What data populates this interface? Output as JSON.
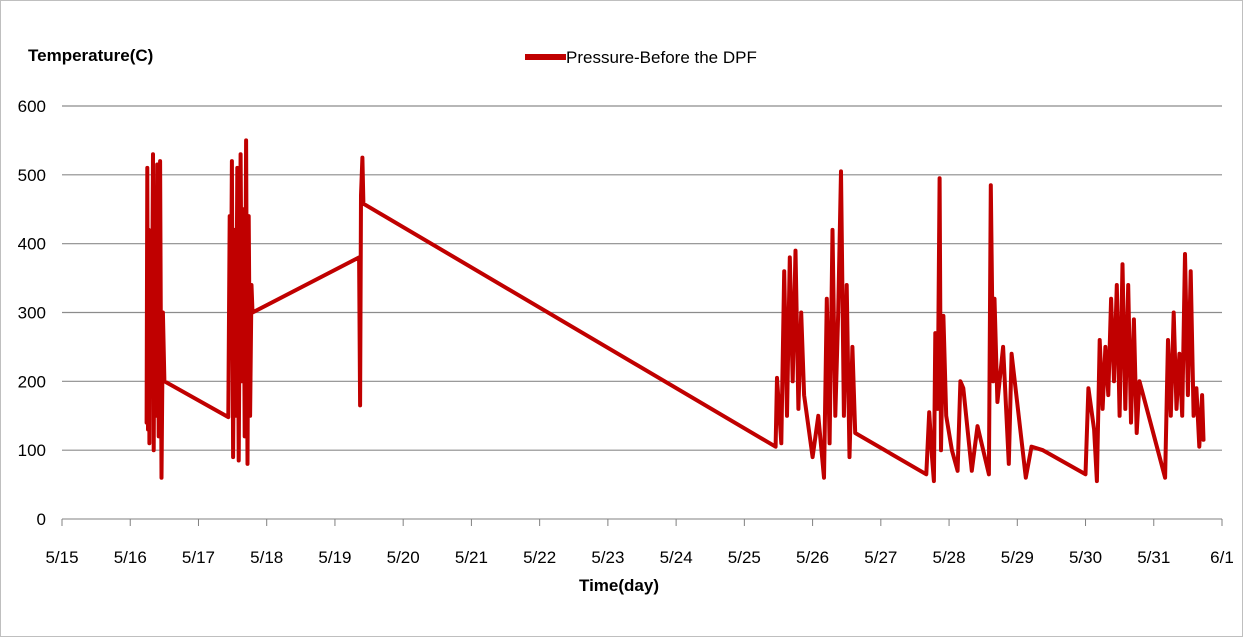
{
  "chart_data": {
    "type": "line",
    "title": "",
    "ylabel": "Temperature(C)",
    "xlabel": "Time(day)",
    "ylim": [
      0,
      600
    ],
    "yticks": [
      0,
      100,
      200,
      300,
      400,
      500,
      600
    ],
    "ytick_labels": [
      "0",
      "100",
      "200",
      "300",
      "400",
      "500",
      "600"
    ],
    "xlim": [
      "5/15",
      "6/1"
    ],
    "xtick_labels": [
      "5/15",
      "5/16",
      "5/17",
      "5/18",
      "5/19",
      "5/20",
      "5/21",
      "5/22",
      "5/23",
      "5/24",
      "5/25",
      "5/26",
      "5/27",
      "5/28",
      "5/29",
      "5/30",
      "5/31",
      "6/1"
    ],
    "grid": "horizontal",
    "legend_position": "top-center",
    "series": [
      {
        "name": "Pressure-Before the DPF",
        "color": "#c00000",
        "points": [
          [
            "2016-05-16 05:45",
            140
          ],
          [
            "2016-05-16 06:00",
            510
          ],
          [
            "2016-05-16 06:15",
            130
          ],
          [
            "2016-05-16 06:30",
            420
          ],
          [
            "2016-05-16 06:45",
            110
          ],
          [
            "2016-05-16 07:00",
            380
          ],
          [
            "2016-05-16 07:30",
            180
          ],
          [
            "2016-05-16 08:00",
            530
          ],
          [
            "2016-05-16 08:15",
            100
          ],
          [
            "2016-05-16 08:40",
            450
          ],
          [
            "2016-05-16 09:00",
            150
          ],
          [
            "2016-05-16 09:30",
            515
          ],
          [
            "2016-05-16 10:00",
            120
          ],
          [
            "2016-05-16 10:30",
            520
          ],
          [
            "2016-05-16 11:00",
            60
          ],
          [
            "2016-05-16 11:30",
            300
          ],
          [
            "2016-05-16 12:00",
            200
          ],
          [
            "2016-05-17 10:30",
            148
          ],
          [
            "2016-05-17 11:00",
            440
          ],
          [
            "2016-05-17 11:20",
            250
          ],
          [
            "2016-05-17 11:45",
            520
          ],
          [
            "2016-05-17 12:10",
            90
          ],
          [
            "2016-05-17 12:40",
            420
          ],
          [
            "2016-05-17 13:10",
            150
          ],
          [
            "2016-05-17 13:40",
            510
          ],
          [
            "2016-05-17 14:10",
            85
          ],
          [
            "2016-05-17 14:50",
            530
          ],
          [
            "2016-05-17 15:20",
            200
          ],
          [
            "2016-05-17 15:50",
            450
          ],
          [
            "2016-05-17 16:15",
            120
          ],
          [
            "2016-05-17 16:45",
            550
          ],
          [
            "2016-05-17 17:15",
            80
          ],
          [
            "2016-05-17 17:40",
            440
          ],
          [
            "2016-05-17 18:10",
            150
          ],
          [
            "2016-05-17 18:40",
            340
          ],
          [
            "2016-05-17 19:00",
            300
          ],
          [
            "2016-05-19 08:30",
            380
          ],
          [
            "2016-05-19 08:50",
            165
          ],
          [
            "2016-05-19 09:10",
            470
          ],
          [
            "2016-05-19 09:40",
            525
          ],
          [
            "2016-05-19 10:00",
            458
          ],
          [
            "2016-05-25 11:00",
            105
          ],
          [
            "2016-05-25 11:30",
            205
          ],
          [
            "2016-05-25 13:00",
            110
          ],
          [
            "2016-05-25 14:00",
            360
          ],
          [
            "2016-05-25 15:00",
            150
          ],
          [
            "2016-05-25 16:00",
            380
          ],
          [
            "2016-05-25 17:00",
            200
          ],
          [
            "2016-05-25 18:00",
            390
          ],
          [
            "2016-05-25 19:00",
            160
          ],
          [
            "2016-05-25 20:00",
            300
          ],
          [
            "2016-05-25 21:00",
            180
          ],
          [
            "2016-05-26 00:00",
            90
          ],
          [
            "2016-05-26 02:00",
            150
          ],
          [
            "2016-05-26 04:00",
            60
          ],
          [
            "2016-05-26 05:00",
            320
          ],
          [
            "2016-05-26 06:00",
            110
          ],
          [
            "2016-05-26 07:00",
            420
          ],
          [
            "2016-05-26 08:00",
            150
          ],
          [
            "2016-05-26 09:00",
            300
          ],
          [
            "2016-05-26 10:00",
            505
          ],
          [
            "2016-05-26 11:00",
            150
          ],
          [
            "2016-05-26 12:00",
            340
          ],
          [
            "2016-05-26 13:00",
            90
          ],
          [
            "2016-05-26 14:00",
            250
          ],
          [
            "2016-05-26 15:00",
            125
          ],
          [
            "2016-05-27 16:00",
            65
          ],
          [
            "2016-05-27 17:00",
            155
          ],
          [
            "2016-05-27 18:00",
            90
          ],
          [
            "2016-05-27 18:40",
            55
          ],
          [
            "2016-05-27 19:10",
            270
          ],
          [
            "2016-05-27 20:00",
            160
          ],
          [
            "2016-05-27 20:40",
            495
          ],
          [
            "2016-05-27 21:10",
            100
          ],
          [
            "2016-05-27 22:00",
            295
          ],
          [
            "2016-05-27 23:00",
            150
          ],
          [
            "2016-05-28 01:00",
            100
          ],
          [
            "2016-05-28 03:00",
            70
          ],
          [
            "2016-05-28 04:00",
            200
          ],
          [
            "2016-05-28 05:00",
            190
          ],
          [
            "2016-05-28 08:00",
            70
          ],
          [
            "2016-05-28 10:00",
            135
          ],
          [
            "2016-05-28 14:00",
            65
          ],
          [
            "2016-05-28 14:40",
            485
          ],
          [
            "2016-05-28 15:30",
            200
          ],
          [
            "2016-05-28 16:00",
            320
          ],
          [
            "2016-05-28 17:00",
            170
          ],
          [
            "2016-05-28 19:00",
            250
          ],
          [
            "2016-05-28 21:00",
            80
          ],
          [
            "2016-05-28 22:00",
            240
          ],
          [
            "2016-05-29 03:00",
            60
          ],
          [
            "2016-05-29 05:00",
            105
          ],
          [
            "2016-05-29 09:00",
            100
          ],
          [
            "2016-05-30 00:00",
            65
          ],
          [
            "2016-05-30 01:00",
            190
          ],
          [
            "2016-05-30 03:00",
            130
          ],
          [
            "2016-05-30 04:00",
            55
          ],
          [
            "2016-05-30 05:00",
            260
          ],
          [
            "2016-05-30 06:00",
            160
          ],
          [
            "2016-05-30 07:00",
            250
          ],
          [
            "2016-05-30 08:00",
            180
          ],
          [
            "2016-05-30 09:00",
            320
          ],
          [
            "2016-05-30 10:00",
            200
          ],
          [
            "2016-05-30 11:00",
            340
          ],
          [
            "2016-05-30 12:00",
            150
          ],
          [
            "2016-05-30 13:00",
            370
          ],
          [
            "2016-05-30 14:00",
            160
          ],
          [
            "2016-05-30 15:00",
            340
          ],
          [
            "2016-05-30 16:00",
            140
          ],
          [
            "2016-05-30 17:00",
            290
          ],
          [
            "2016-05-30 18:00",
            125
          ],
          [
            "2016-05-30 19:00",
            200
          ],
          [
            "2016-05-31 04:00",
            60
          ],
          [
            "2016-05-31 05:00",
            260
          ],
          [
            "2016-05-31 06:00",
            150
          ],
          [
            "2016-05-31 07:00",
            300
          ],
          [
            "2016-05-31 08:00",
            160
          ],
          [
            "2016-05-31 09:00",
            240
          ],
          [
            "2016-05-31 10:00",
            150
          ],
          [
            "2016-05-31 11:00",
            385
          ],
          [
            "2016-05-31 12:00",
            180
          ],
          [
            "2016-05-31 13:00",
            360
          ],
          [
            "2016-05-31 14:00",
            150
          ],
          [
            "2016-05-31 15:00",
            190
          ],
          [
            "2016-05-31 16:00",
            105
          ],
          [
            "2016-05-31 17:00",
            180
          ],
          [
            "2016-05-31 17:30",
            115
          ]
        ]
      }
    ]
  }
}
